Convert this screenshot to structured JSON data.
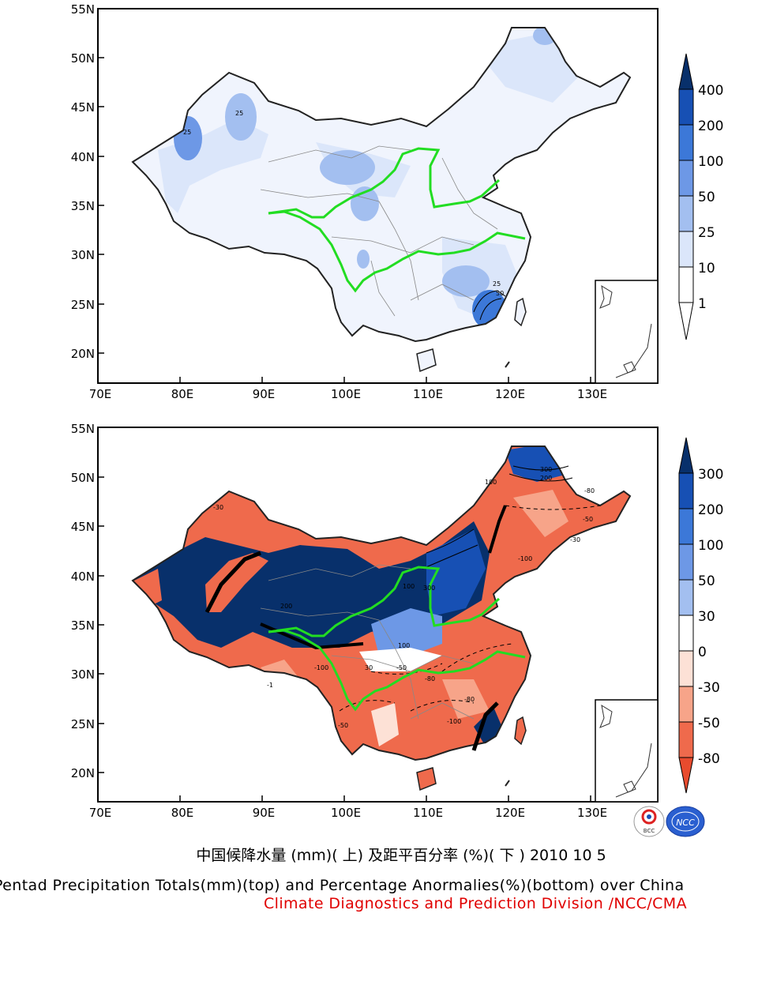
{
  "top_map": {
    "lat_ticks": [
      "55N",
      "50N",
      "45N",
      "40N",
      "35N",
      "30N",
      "25N",
      "20N"
    ],
    "lon_ticks": [
      "70E",
      "80E",
      "90E",
      "100E",
      "110E",
      "120E",
      "130E"
    ],
    "contour_labels": [
      "25",
      "25",
      "25",
      "50"
    ],
    "colorbar": {
      "labels": [
        "400",
        "200",
        "100",
        "50",
        "25",
        "10",
        "1"
      ],
      "colors": [
        "#08306b",
        "#1750b4",
        "#3c78d8",
        "#6d98e6",
        "#a3bff0",
        "#dbe6fa",
        "#ffffff"
      ]
    }
  },
  "bottom_map": {
    "lat_ticks": [
      "55N",
      "50N",
      "45N",
      "40N",
      "35N",
      "30N",
      "25N",
      "20N"
    ],
    "lon_ticks": [
      "70E",
      "80E",
      "90E",
      "100E",
      "110E",
      "120E",
      "130E"
    ],
    "contour_labels": [
      "300",
      "200",
      "100",
      "-100",
      "-50",
      "-80",
      "-30",
      "100",
      "200",
      "300",
      "-100",
      "-50",
      "-80",
      "-30",
      "30",
      "-1",
      "-50",
      "-80",
      "-100",
      "100"
    ],
    "colorbar": {
      "labels": [
        "300",
        "200",
        "100",
        "50",
        "30",
        "0",
        "-30",
        "-50",
        "-80"
      ],
      "colors": [
        "#08306b",
        "#1750b4",
        "#3c78d8",
        "#6d98e6",
        "#a3bff0",
        "#ffffff",
        "#fde1d6",
        "#f7a489",
        "#ef6a4c",
        "#e84b2e"
      ]
    }
  },
  "logos": {
    "bcc": "BCC",
    "ncc": "NCC"
  },
  "caption": {
    "chinese": "中国候降水量 (mm)( 上) 及距平百分率 (%)( 下 ) 2010 10 5",
    "english": "Pentad Precipitation Totals(mm)(top) and Percentage Anormalies(%)(bottom) over China",
    "division": "Climate Diagnostics and Prediction Division /NCC/CMA"
  }
}
